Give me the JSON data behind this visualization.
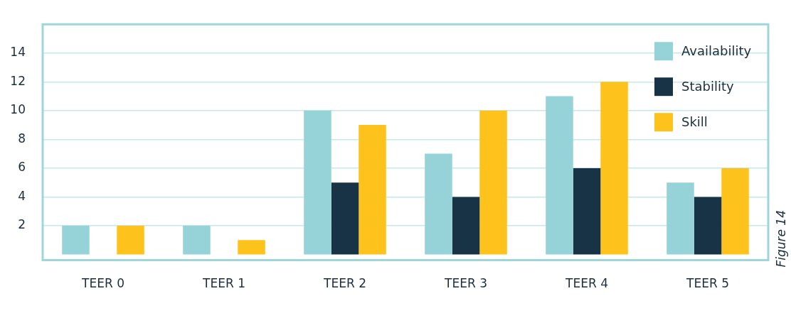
{
  "chart_data": {
    "type": "bar",
    "categories": [
      "TEER 0",
      "TEER 1",
      "TEER 2",
      "TEER 3",
      "TEER 4",
      "TEER 5"
    ],
    "series": [
      {
        "name": "Availability",
        "color": "#96d3d9",
        "values": [
          2,
          2,
          10,
          7,
          11,
          5
        ]
      },
      {
        "name": "Stability",
        "color": "#183345",
        "values": [
          0,
          0,
          5,
          4,
          6,
          4
        ]
      },
      {
        "name": "Skill",
        "color": "#fdc31c",
        "values": [
          2,
          1,
          9,
          10,
          12,
          6
        ]
      }
    ],
    "ylim": [
      -0.4,
      16
    ],
    "yticks": [
      2,
      4,
      6,
      8,
      10,
      12,
      14
    ],
    "grid": "y",
    "legend": "top right",
    "annotations": [
      "Figure 14"
    ]
  }
}
